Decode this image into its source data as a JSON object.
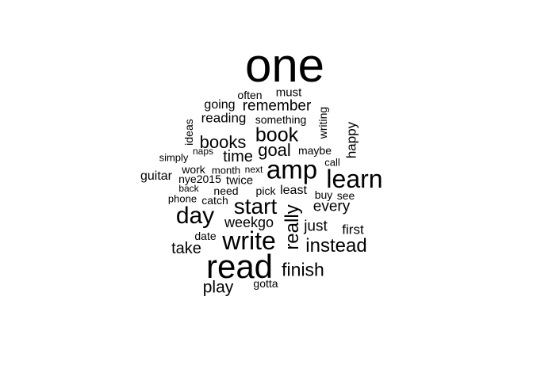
{
  "wordcloud": {
    "text_color": "#000000",
    "background_color": "#ffffff",
    "words": [
      {
        "text": "one",
        "vertical": false
      },
      {
        "text": "often",
        "vertical": false
      },
      {
        "text": "must",
        "vertical": false
      },
      {
        "text": "going",
        "vertical": false
      },
      {
        "text": "remember",
        "vertical": false
      },
      {
        "text": "reading",
        "vertical": false
      },
      {
        "text": "something",
        "vertical": false
      },
      {
        "text": "writing",
        "vertical": true
      },
      {
        "text": "ideas",
        "vertical": true
      },
      {
        "text": "book",
        "vertical": false
      },
      {
        "text": "happy",
        "vertical": true
      },
      {
        "text": "books",
        "vertical": false
      },
      {
        "text": "naps",
        "vertical": false
      },
      {
        "text": "goal",
        "vertical": false
      },
      {
        "text": "maybe",
        "vertical": false
      },
      {
        "text": "simply",
        "vertical": false
      },
      {
        "text": "time",
        "vertical": false
      },
      {
        "text": "call",
        "vertical": false
      },
      {
        "text": "amp",
        "vertical": false
      },
      {
        "text": "learn",
        "vertical": false
      },
      {
        "text": "work",
        "vertical": false
      },
      {
        "text": "month",
        "vertical": false
      },
      {
        "text": "next",
        "vertical": false
      },
      {
        "text": "guitar",
        "vertical": false
      },
      {
        "text": "nye2015",
        "vertical": false
      },
      {
        "text": "twice",
        "vertical": false
      },
      {
        "text": "back",
        "vertical": false
      },
      {
        "text": "need",
        "vertical": false
      },
      {
        "text": "pick",
        "vertical": false
      },
      {
        "text": "least",
        "vertical": false
      },
      {
        "text": "buy",
        "vertical": false
      },
      {
        "text": "see",
        "vertical": false
      },
      {
        "text": "phone",
        "vertical": false
      },
      {
        "text": "catch",
        "vertical": false
      },
      {
        "text": "start",
        "vertical": false
      },
      {
        "text": "every",
        "vertical": false
      },
      {
        "text": "day",
        "vertical": false
      },
      {
        "text": "really",
        "vertical": true
      },
      {
        "text": "weekgo",
        "vertical": false
      },
      {
        "text": "just",
        "vertical": false
      },
      {
        "text": "first",
        "vertical": false
      },
      {
        "text": "date",
        "vertical": false
      },
      {
        "text": "write",
        "vertical": false
      },
      {
        "text": "take",
        "vertical": false
      },
      {
        "text": "instead",
        "vertical": false
      },
      {
        "text": "read",
        "vertical": false
      },
      {
        "text": "finish",
        "vertical": false
      },
      {
        "text": "play",
        "vertical": false
      },
      {
        "text": "gotta",
        "vertical": false
      }
    ]
  }
}
